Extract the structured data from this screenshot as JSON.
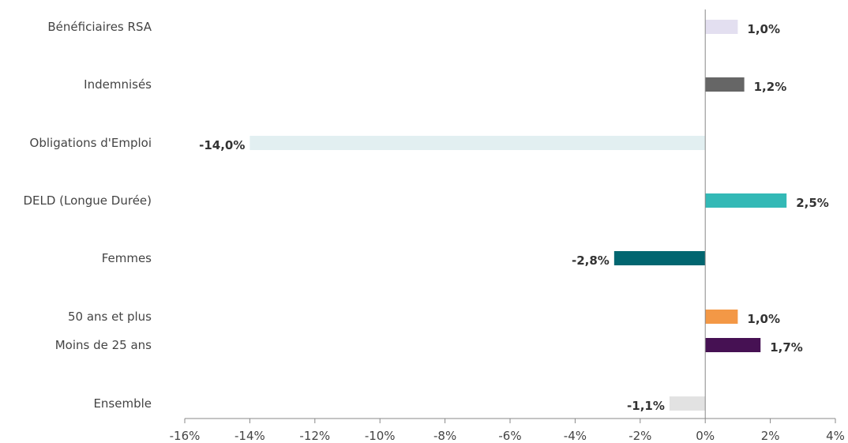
{
  "chart_data": {
    "type": "bar",
    "orientation": "horizontal",
    "categories": [
      "Bénéficiaires RSA",
      "Indemnisés",
      "Obligations d'Emploi",
      "DELD (Longue Durée)",
      "Femmes",
      "50 ans et plus",
      "Moins de 25 ans",
      "Ensemble"
    ],
    "values": [
      1.0,
      1.2,
      -14.0,
      2.5,
      -2.8,
      1.0,
      1.7,
      -1.1
    ],
    "value_labels": [
      "1,0%",
      "1,2%",
      "-14,0%",
      "2,5%",
      "-2,8%",
      "1,0%",
      "1,7%",
      "-1,1%"
    ],
    "colors": [
      "#e3dff0",
      "#666666",
      "#e2eff1",
      "#33b9b6",
      "#026670",
      "#f39846",
      "#461153",
      "#e2e2e2"
    ],
    "xlim": [
      -16,
      4
    ],
    "xticks": [
      -16,
      -14,
      -12,
      -10,
      -8,
      -6,
      -4,
      -2,
      0,
      2,
      4
    ],
    "xtick_labels": [
      "-16%",
      "-14%",
      "-12%",
      "-10%",
      "-8%",
      "-6%",
      "-4%",
      "-2%",
      "0%",
      "2%",
      "4%"
    ],
    "grid": false,
    "legend": "none"
  }
}
